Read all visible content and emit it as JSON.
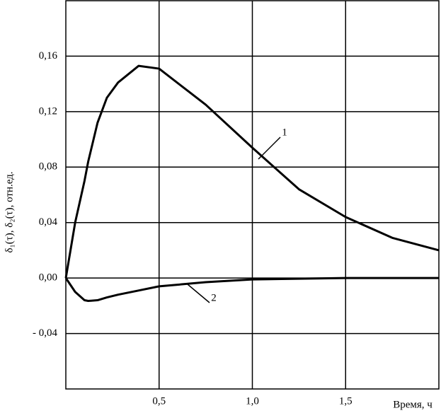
{
  "chart_data": {
    "type": "line",
    "x_label": "Время, ч",
    "y_label": "δ₁(τ), δ₂(τ), отн.ед.",
    "x": [
      0,
      0.05,
      0.1,
      0.12,
      0.17,
      0.22,
      0.28,
      0.39,
      0.5,
      0.75,
      1.0,
      1.25,
      1.5,
      1.75,
      2.0
    ],
    "series": [
      {
        "name": "1",
        "color": "#000000",
        "values": [
          0,
          0.04,
          0.07,
          0.084,
          0.112,
          0.13,
          0.141,
          0.153,
          0.151,
          0.125,
          0.094,
          0.064,
          0.044,
          0.029,
          0.02
        ]
      },
      {
        "name": "2",
        "color": "#000000",
        "values": [
          0,
          -0.01,
          -0.016,
          -0.0165,
          -0.016,
          -0.014,
          -0.012,
          -0.009,
          -0.006,
          -0.003,
          -0.001,
          -0.0005,
          0,
          0,
          0
        ]
      }
    ],
    "xlim": [
      0,
      2.0
    ],
    "ylim": [
      -0.08,
      0.2
    ],
    "xticks": [
      {
        "value": 0.5,
        "label": "0,5"
      },
      {
        "value": 1.0,
        "label": "1,0"
      },
      {
        "value": 1.5,
        "label": "1,5"
      }
    ],
    "yticks": [
      {
        "value": -0.04,
        "label": "- 0,04"
      },
      {
        "value": 0,
        "label": "0,00"
      },
      {
        "value": 0.04,
        "label": "0,04"
      },
      {
        "value": 0.08,
        "label": "0,08"
      },
      {
        "value": 0.12,
        "label": "0,12"
      },
      {
        "value": 0.16,
        "label": "0,16"
      }
    ],
    "grid": true
  }
}
